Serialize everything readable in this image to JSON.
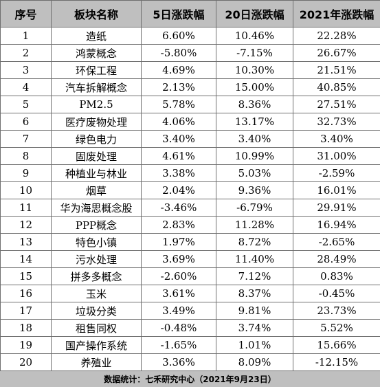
{
  "headers": {
    "index": "序号",
    "name": "板块名称",
    "d5": "5日涨跌幅",
    "d20": "20日涨跌幅",
    "y2021": "2021年涨跌幅"
  },
  "rows": [
    {
      "index": "1",
      "name": "造纸",
      "d5": "6.60%",
      "d20": "10.46%",
      "y2021": "22.28%"
    },
    {
      "index": "2",
      "name": "鸿蒙概念",
      "d5": "-5.80%",
      "d20": "-7.15%",
      "y2021": "26.67%"
    },
    {
      "index": "3",
      "name": "环保工程",
      "d5": "4.69%",
      "d20": "10.30%",
      "y2021": "21.51%"
    },
    {
      "index": "4",
      "name": "汽车拆解概念",
      "d5": "2.13%",
      "d20": "15.00%",
      "y2021": "40.85%"
    },
    {
      "index": "5",
      "name": "PM2.5",
      "d5": "5.78%",
      "d20": "8.36%",
      "y2021": "27.51%"
    },
    {
      "index": "6",
      "name": "医疗废物处理",
      "d5": "4.06%",
      "d20": "13.17%",
      "y2021": "32.73%"
    },
    {
      "index": "7",
      "name": "绿色电力",
      "d5": "3.40%",
      "d20": "3.40%",
      "y2021": "3.40%"
    },
    {
      "index": "8",
      "name": "固废处理",
      "d5": "4.61%",
      "d20": "10.99%",
      "y2021": "31.00%"
    },
    {
      "index": "9",
      "name": "种植业与林业",
      "d5": "3.38%",
      "d20": "5.03%",
      "y2021": "-2.59%"
    },
    {
      "index": "10",
      "name": "烟草",
      "d5": "2.04%",
      "d20": "9.36%",
      "y2021": "16.01%"
    },
    {
      "index": "11",
      "name": "华为海思概念股",
      "d5": "-3.46%",
      "d20": "-6.79%",
      "y2021": "29.91%"
    },
    {
      "index": "12",
      "name": "PPP概念",
      "d5": "2.83%",
      "d20": "11.28%",
      "y2021": "16.94%"
    },
    {
      "index": "13",
      "name": "特色小镇",
      "d5": "1.97%",
      "d20": "8.72%",
      "y2021": "-2.65%"
    },
    {
      "index": "14",
      "name": "污水处理",
      "d5": "3.69%",
      "d20": "11.40%",
      "y2021": "28.49%"
    },
    {
      "index": "15",
      "name": "拼多多概念",
      "d5": "-2.60%",
      "d20": "7.12%",
      "y2021": "0.83%"
    },
    {
      "index": "16",
      "name": "玉米",
      "d5": "3.61%",
      "d20": "8.37%",
      "y2021": "-0.45%"
    },
    {
      "index": "17",
      "name": "垃圾分类",
      "d5": "3.49%",
      "d20": "9.81%",
      "y2021": "23.73%"
    },
    {
      "index": "18",
      "name": "租售同权",
      "d5": "-0.48%",
      "d20": "3.74%",
      "y2021": "5.52%"
    },
    {
      "index": "19",
      "name": "国产操作系统",
      "d5": "-1.65%",
      "d20": "1.01%",
      "y2021": "15.66%"
    },
    {
      "index": "20",
      "name": "养殖业",
      "d5": "3.36%",
      "d20": "8.09%",
      "y2021": "-12.15%"
    }
  ],
  "footer": "数据统计：七禾研究中心（2021年9月23日）"
}
